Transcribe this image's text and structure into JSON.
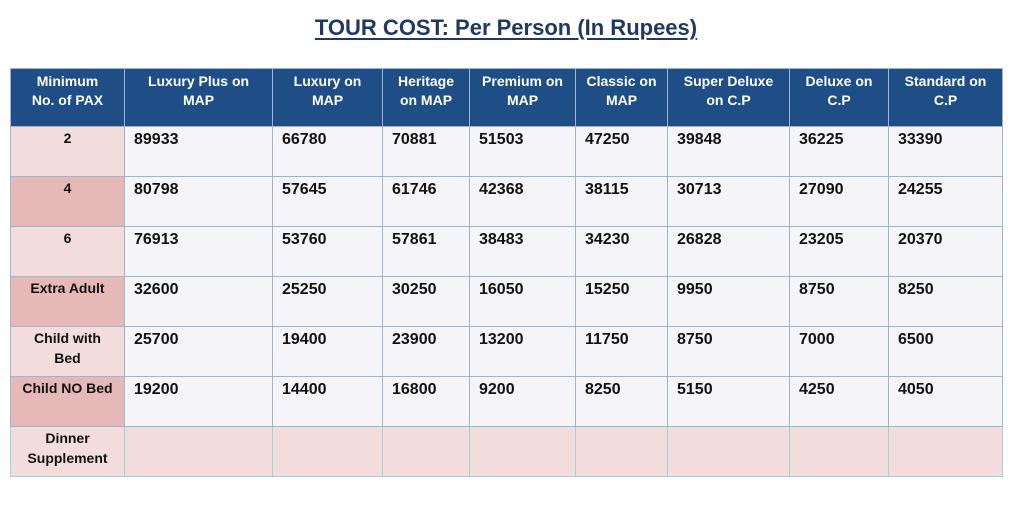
{
  "title": "TOUR COST: Per Person (In Rupees)",
  "table": {
    "headers": [
      "Minimum\nNo. of PAX",
      "Luxury Plus on\nMAP",
      "Luxury on\nMAP",
      "Heritage\non MAP",
      "Premium on\nMAP",
      "Classic on\nMAP",
      "Super Deluxe\non C.P",
      "Deluxe on\nC.P",
      "Standard on\nC.P"
    ],
    "rows": [
      {
        "label": "2",
        "values": [
          "89933",
          "66780",
          "70881",
          "51503",
          "47250",
          "39848",
          "36225",
          "33390"
        ]
      },
      {
        "label": "4",
        "values": [
          "80798",
          "57645",
          "61746",
          "42368",
          "38115",
          "30713",
          "27090",
          "24255"
        ]
      },
      {
        "label": "6",
        "values": [
          "76913",
          "53760",
          "57861",
          "38483",
          "34230",
          "26828",
          "23205",
          "20370"
        ]
      },
      {
        "label": "Extra Adult",
        "values": [
          "32600",
          "25250",
          "30250",
          "16050",
          "15250",
          "9950",
          "8750",
          "8250"
        ]
      },
      {
        "label": "Child with\nBed",
        "values": [
          "25700",
          "19400",
          "23900",
          "13200",
          "11750",
          "8750",
          "7000",
          "6500"
        ]
      },
      {
        "label": "Child NO Bed",
        "values": [
          "19200",
          "14400",
          "16800",
          "9200",
          "8250",
          "5150",
          "4250",
          "4050"
        ]
      },
      {
        "label": "Dinner\nSupplement",
        "values": [
          "",
          "",
          "",
          "",
          "",
          "",
          "",
          ""
        ]
      }
    ]
  },
  "colors": {
    "header_bg": "#1f4e86",
    "title_text": "#1f3864",
    "label_light": "#f3dcdc",
    "label_dark": "#e6b8b8",
    "cell_bg": "#f5f5f7"
  }
}
